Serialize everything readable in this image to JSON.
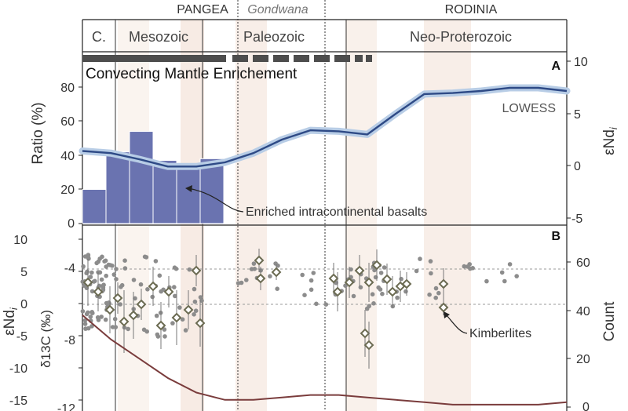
{
  "header": {
    "supercontinents": {
      "pangea": "PANGEA",
      "gondwana": "Gondwana",
      "rodinia": "RODINIA"
    },
    "eras": [
      "C.",
      "Mesozoic",
      "Paleozoic",
      "Neo-Proterozoic"
    ]
  },
  "panel_a": {
    "letter": "A",
    "enrichment_label": "Convecting Mantle Enrichement",
    "lowess_label": "LOWESS",
    "annotation": "Enriched intracontinental basalts",
    "left_axis": {
      "label": "Ratio (%)",
      "ticks": [
        "0",
        "20",
        "40",
        "60",
        "80"
      ]
    },
    "right_axis": {
      "label": "εNd",
      "label_sub": "i",
      "ticks": [
        "10",
        "5",
        "0",
        "-5"
      ]
    }
  },
  "panel_b": {
    "letter": "B",
    "annotation": "Kimberlites",
    "left_axis": {
      "label": "εNd",
      "label_sub": "i",
      "ticks": [
        "10",
        "5",
        "0",
        "-5",
        "-10",
        "-15"
      ]
    },
    "inner_axis": {
      "label": "δ13C (‰)",
      "ticks": [
        "-4",
        "-8",
        "-12"
      ]
    },
    "right_axis": {
      "label": "Count",
      "ticks": [
        "60",
        "40",
        "20",
        "0"
      ]
    }
  },
  "colors": {
    "bars": "#6a73b0",
    "lowess_line": "#2e4a86",
    "lowess_band": "#b8cde6",
    "count_line": "#8b3a3a",
    "points": "#8c8c8c",
    "diamonds": "#6b6b52",
    "enrichment_bar": "#4d4d4d",
    "shading": "#f3e3d8"
  },
  "chart_data": [
    {
      "panel": "A",
      "type": "bar",
      "categories": [
        "bin1",
        "bin2",
        "bin3",
        "bin4",
        "bin5",
        "bin6"
      ],
      "values": [
        20,
        42,
        54,
        37,
        33,
        38
      ],
      "ylabel": "Ratio (%)",
      "ylim": [
        0,
        100
      ],
      "series_right": {
        "name": "LOWESS",
        "type": "line",
        "axis": "εNdi",
        "ylim": [
          -5.5,
          10.5
        ],
        "y": [
          1.4,
          1.2,
          0.6,
          -0.1,
          -0.1,
          0.3,
          1.2,
          2.5,
          3.4,
          3.3,
          3.0,
          5.0,
          6.9,
          7.0,
          7.2,
          7.5,
          7.5,
          7.2
        ]
      }
    },
    {
      "panel": "B",
      "type": "scatter",
      "left_axis": {
        "label": "εNdi",
        "ylim": [
          -16,
          11
        ]
      },
      "inner_axis": {
        "label": "δ13C (‰)",
        "ticks": [
          -4,
          -8,
          -12
        ]
      },
      "right_axis": {
        "label": "Count",
        "ylim": [
          0,
          70
        ]
      },
      "reference_lines_count": [
        58,
        43
      ],
      "count_line": [
        38,
        28,
        20,
        12,
        6,
        3,
        3,
        4,
        5,
        5,
        4,
        3,
        2,
        1,
        1,
        1,
        1,
        2
      ]
    }
  ]
}
